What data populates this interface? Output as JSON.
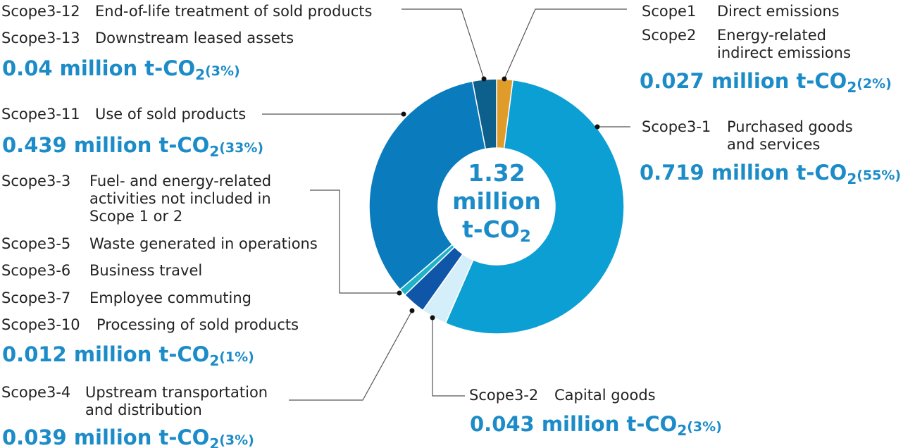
{
  "chart_data": {
    "type": "pie",
    "donut": true,
    "center_label": {
      "value": "1.32",
      "unit": "million",
      "unit2_main": "t-CO",
      "unit2_sub": "2"
    },
    "slices": [
      {
        "category": "Scope1/Scope2",
        "value": 0.027,
        "percent": 2,
        "color": "#e09c2b"
      },
      {
        "category": "Scope3-1",
        "value": 0.719,
        "percent": 55,
        "color": "#0c9fd3"
      },
      {
        "category": "Scope3-2",
        "value": 0.043,
        "percent": 3,
        "color": "#d4effa"
      },
      {
        "category": "Scope3-4",
        "value": 0.039,
        "percent": 3,
        "color": "#0f55a8"
      },
      {
        "category": "Scope3-3/5/6/7/10",
        "value": 0.012,
        "percent": 1,
        "color": "#1eb3c9"
      },
      {
        "category": "Scope3-11",
        "value": 0.439,
        "percent": 33,
        "color": "#0a7cbd"
      },
      {
        "category": "Scope3-12/13",
        "value": 0.04,
        "percent": 3,
        "color": "#0d5f8c"
      }
    ]
  },
  "labels": {
    "s12_code": "Scope3-12",
    "s12_desc": "End-of-life treatment of sold products",
    "s13_code": "Scope3-13",
    "s13_desc": "Downstream leased assets",
    "g1213_value": "0.04 million t-CO",
    "g1213_sub": "2",
    "g1213_pct": "(3%)",
    "s11_code": "Scope3-11",
    "s11_desc": "Use of sold products",
    "g11_value": "0.439 million t-CO",
    "g11_sub": "2",
    "g11_pct": "(33%)",
    "s3_code": "Scope3-3",
    "s3_desc": "Fuel- and energy-related\nactivities not included in\nScope 1 or 2",
    "s5_code": "Scope3-5",
    "s5_desc": "Waste generated in operations",
    "s6_code": "Scope3-6",
    "s6_desc": "Business travel",
    "s7_code": "Scope3-7",
    "s7_desc": "Employee commuting",
    "s10_code": "Scope3-10",
    "s10_desc": "Processing of sold products",
    "gmisc_value": "0.012 million  t-CO",
    "gmisc_sub": "2",
    "gmisc_pct": "(1%)",
    "s4_code": "Scope3-4",
    "s4_desc": "Upstream transportation\nand distribution",
    "g4_value": "0.039 million  t-CO",
    "g4_sub": "2",
    "g4_pct": "(3%)",
    "sc1_code": "Scope1",
    "sc1_desc": "Direct emissions",
    "sc2_code": "Scope2",
    "sc2_desc": "Energy-related\nindirect emissions",
    "g12_value": "0.027 million  t-CO",
    "g12_sub": "2",
    "g12_pct": "(2%)",
    "s31_code": "Scope3-1",
    "s31_desc": "Purchased goods\nand services",
    "g31_value": "0.719 million  t-CO",
    "g31_sub": "2",
    "g31_pct": "(55%)",
    "s32_code": "Scope3-2",
    "s32_desc": "Capital goods",
    "g32_value": "0.043 million  t-CO",
    "g32_sub": "2",
    "g32_pct": "(3%)"
  }
}
